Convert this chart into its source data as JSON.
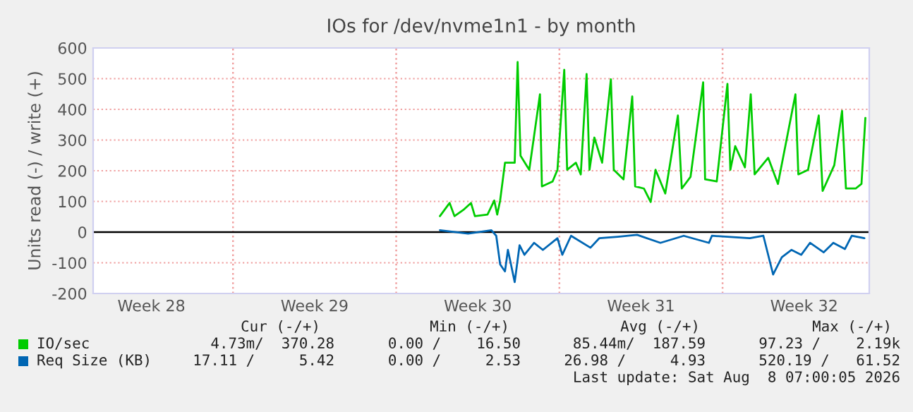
{
  "chart_data": {
    "type": "line",
    "title": "IOs for /dev/nvme1n1 - by month",
    "ylabel": "Units read (-) / write (+)",
    "xlim": [
      "2026-07-06T00:00",
      "2026-08-08T07:00"
    ],
    "xticks": [
      {
        "value": "2026-07-08T12:00",
        "label": "Week 28"
      },
      {
        "value": "2026-07-15T12:00",
        "label": "Week 29"
      },
      {
        "value": "2026-07-22T12:00",
        "label": "Week 30"
      },
      {
        "value": "2026-07-29T12:00",
        "label": "Week 31"
      },
      {
        "value": "2026-08-05T12:00",
        "label": "Week 32"
      }
    ],
    "ylim": [
      -200,
      600
    ],
    "yticks": [
      -200,
      -100,
      0,
      100,
      200,
      300,
      400,
      500,
      600
    ],
    "grid": "y",
    "legend": "bottom",
    "ref_lines": [
      {
        "axis": "x",
        "value": "2026-07-12",
        "color": "#f0a0a0",
        "line_style": "dotted"
      },
      {
        "axis": "x",
        "value": "2026-07-19",
        "color": "#f0a0a0",
        "line_style": "dotted"
      },
      {
        "axis": "x",
        "value": "2026-07-26",
        "color": "#f0a0a0",
        "line_style": "dotted"
      },
      {
        "axis": "x",
        "value": "2026-08-02",
        "color": "#f0a0a0",
        "line_style": "dotted"
      },
      {
        "axis": "y",
        "value": 0,
        "color": "#000000",
        "line_style": "solid"
      }
    ],
    "series": [
      {
        "name": "IO/sec",
        "color": "#00cc00",
        "x": [
          "2026-07-20T21:00",
          "2026-07-21T07:00",
          "2026-07-21T12:00",
          "2026-07-21T21:00",
          "2026-07-22T05:00",
          "2026-07-22T09:00",
          "2026-07-22T22:00",
          "2026-07-23T05:00",
          "2026-07-23T08:00",
          "2026-07-23T11:00",
          "2026-07-23T16:00",
          "2026-07-24T02:00",
          "2026-07-24T05:00",
          "2026-07-24T08:00",
          "2026-07-24T17:00",
          "2026-07-25T04:00",
          "2026-07-25T06:00",
          "2026-07-25T17:00",
          "2026-07-25T22:00",
          "2026-07-26T05:00",
          "2026-07-26T08:00",
          "2026-07-26T17:00",
          "2026-07-26T22:00",
          "2026-07-27T04:00",
          "2026-07-27T07:00",
          "2026-07-27T12:00",
          "2026-07-27T20:00",
          "2026-07-28T05:00",
          "2026-07-28T08:00",
          "2026-07-28T18:00",
          "2026-07-29T03:00",
          "2026-07-29T06:00",
          "2026-07-29T15:00",
          "2026-07-29T22:00",
          "2026-07-30T03:00",
          "2026-07-30T13:00",
          "2026-07-31T02:00",
          "2026-07-31T06:00",
          "2026-07-31T15:00",
          "2026-08-01T04:00",
          "2026-08-01T06:00",
          "2026-08-01T18:00",
          "2026-08-02T05:00",
          "2026-08-02T08:00",
          "2026-08-02T13:00",
          "2026-08-02T23:00",
          "2026-08-03T05:00",
          "2026-08-03T09:00",
          "2026-08-03T23:00",
          "2026-08-04T09:00",
          "2026-08-05T03:00",
          "2026-08-05T06:00",
          "2026-08-05T16:00",
          "2026-08-06T03:00",
          "2026-08-06T07:00",
          "2026-08-06T19:00",
          "2026-08-07T03:00",
          "2026-08-07T07:00",
          "2026-08-07T17:00",
          "2026-08-07T23:00",
          "2026-08-08T03:00"
        ],
        "values": [
          52,
          95,
          52,
          72,
          95,
          52,
          57,
          103,
          57,
          103,
          226,
          226,
          554,
          249,
          203,
          449,
          149,
          165,
          203,
          529,
          203,
          226,
          188,
          515,
          203,
          308,
          226,
          498,
          203,
          172,
          442,
          149,
          142,
          98,
          203,
          126,
          380,
          142,
          180,
          488,
          172,
          165,
          483,
          203,
          280,
          211,
          449,
          188,
          242,
          157,
          449,
          188,
          203,
          380,
          134,
          218,
          395,
          142,
          142,
          157,
          372
        ]
      },
      {
        "name": "Req Size (KB)",
        "color": "#0066b3",
        "x": [
          "2026-07-20T21:00",
          "2026-07-22T02:00",
          "2026-07-23T02:00",
          "2026-07-23T07:00",
          "2026-07-23T11:00",
          "2026-07-23T16:00",
          "2026-07-23T19:00",
          "2026-07-24T02:00",
          "2026-07-24T07:00",
          "2026-07-24T12:00",
          "2026-07-24T22:00",
          "2026-07-25T07:00",
          "2026-07-25T22:00",
          "2026-07-26T03:00",
          "2026-07-26T12:00",
          "2026-07-27T08:00",
          "2026-07-27T17:00",
          "2026-07-28T12:00",
          "2026-07-29T08:00",
          "2026-07-30T08:00",
          "2026-07-31T08:00",
          "2026-08-01T10:00",
          "2026-08-01T13:00",
          "2026-08-03T04:00",
          "2026-08-03T18:00",
          "2026-08-04T04:00",
          "2026-08-04T13:00",
          "2026-08-04T23:00",
          "2026-08-05T09:00",
          "2026-08-05T18:00",
          "2026-08-06T08:00",
          "2026-08-06T18:00",
          "2026-08-07T06:00",
          "2026-08-07T13:00",
          "2026-08-08T02:00"
        ],
        "values": [
          6,
          -5,
          6,
          -12,
          -105,
          -128,
          -58,
          -163,
          -43,
          -74,
          -35,
          -58,
          -20,
          -74,
          -12,
          -51,
          -20,
          -15,
          -9,
          -35,
          -12,
          -35,
          -12,
          -20,
          -12,
          -138,
          -82,
          -58,
          -74,
          -35,
          -66,
          -35,
          -55,
          -12,
          -20
        ]
      }
    ],
    "annotations": [
      "Cur (-/+)",
      "Min (-/+)",
      "Avg (-/+)",
      "Max (-/+)",
      "4.73m/  370.28",
      "0.00 /    16.50",
      "85.44m/  187.59",
      "97.23 /    2.19k",
      "17.11 /     5.42",
      "0.00 /     2.53",
      "26.98 /     4.93",
      "520.19 /   61.52",
      "Last update: Sat Aug  8 07:00:05 2026"
    ]
  }
}
